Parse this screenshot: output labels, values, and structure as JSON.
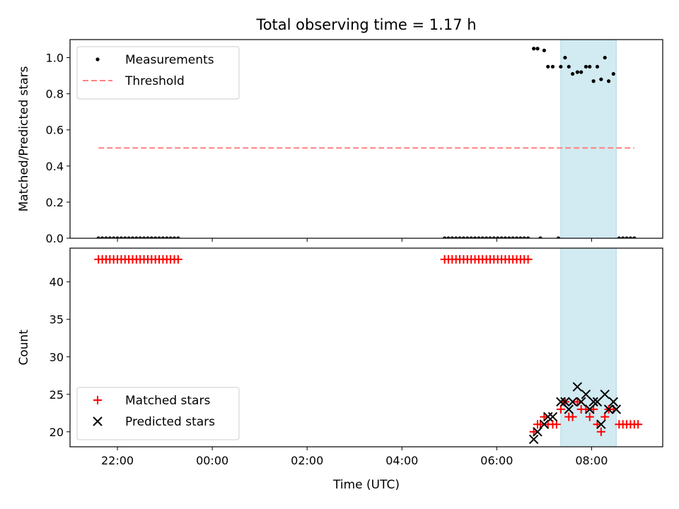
{
  "chart_data": {
    "title": "Total observing time = 1.17 h",
    "xlabel": "Time (UTC)",
    "x_unit": "hours relative to 00:00 UTC",
    "xlim": [
      -3.0,
      9.5
    ],
    "x_ticks": [
      {
        "value": -2,
        "label": "22:00"
      },
      {
        "value": 0,
        "label": "00:00"
      },
      {
        "value": 2,
        "label": "02:00"
      },
      {
        "value": 4,
        "label": "04:00"
      },
      {
        "value": 6,
        "label": "06:00"
      },
      {
        "value": 8,
        "label": "08:00"
      }
    ],
    "observing_window": {
      "x_start": 7.35,
      "x_end": 8.52,
      "color": "#add8e6"
    },
    "panels": [
      {
        "type": "scatter",
        "ylabel": "Matched/Predicted stars",
        "ylim": [
          0.0,
          1.1
        ],
        "y_ticks": [
          0.0,
          0.2,
          0.4,
          0.6,
          0.8,
          1.0
        ],
        "y_tick_labels": [
          "0.0",
          "0.2",
          "0.4",
          "0.6",
          "0.8",
          "1.0"
        ],
        "legend": {
          "placement": "upper left",
          "entries": [
            "Measurements",
            "Threshold"
          ]
        },
        "series": [
          {
            "name": "Measurements",
            "color": "#000000",
            "marker": "dot",
            "points": [
              [
                -2.4,
                0.0
              ],
              [
                -2.32,
                0.0
              ],
              [
                -2.24,
                0.0
              ],
              [
                -2.16,
                0.0
              ],
              [
                -2.08,
                0.0
              ],
              [
                -2.0,
                0.0
              ],
              [
                -1.92,
                0.0
              ],
              [
                -1.84,
                0.0
              ],
              [
                -1.76,
                0.0
              ],
              [
                -1.68,
                0.0
              ],
              [
                -1.6,
                0.0
              ],
              [
                -1.52,
                0.0
              ],
              [
                -1.44,
                0.0
              ],
              [
                -1.36,
                0.0
              ],
              [
                -1.28,
                0.0
              ],
              [
                -1.2,
                0.0
              ],
              [
                -1.12,
                0.0
              ],
              [
                -1.04,
                0.0
              ],
              [
                -0.96,
                0.0
              ],
              [
                -0.88,
                0.0
              ],
              [
                -0.8,
                0.0
              ],
              [
                -0.72,
                0.0
              ],
              [
                4.9,
                0.0
              ],
              [
                4.98,
                0.0
              ],
              [
                5.06,
                0.0
              ],
              [
                5.14,
                0.0
              ],
              [
                5.22,
                0.0
              ],
              [
                5.3,
                0.0
              ],
              [
                5.38,
                0.0
              ],
              [
                5.46,
                0.0
              ],
              [
                5.54,
                0.0
              ],
              [
                5.62,
                0.0
              ],
              [
                5.7,
                0.0
              ],
              [
                5.78,
                0.0
              ],
              [
                5.86,
                0.0
              ],
              [
                5.94,
                0.0
              ],
              [
                6.02,
                0.0
              ],
              [
                6.1,
                0.0
              ],
              [
                6.18,
                0.0
              ],
              [
                6.26,
                0.0
              ],
              [
                6.34,
                0.0
              ],
              [
                6.42,
                0.0
              ],
              [
                6.5,
                0.0
              ],
              [
                6.58,
                0.0
              ],
              [
                6.66,
                0.0
              ],
              [
                6.78,
                1.05
              ],
              [
                6.86,
                1.05
              ],
              [
                6.92,
                0.0
              ],
              [
                7.0,
                1.04
              ],
              [
                7.08,
                0.95
              ],
              [
                7.18,
                0.95
              ],
              [
                7.3,
                0.0
              ],
              [
                7.35,
                0.95
              ],
              [
                7.44,
                1.0
              ],
              [
                7.52,
                0.95
              ],
              [
                7.6,
                0.91
              ],
              [
                7.7,
                0.92
              ],
              [
                7.78,
                0.92
              ],
              [
                7.88,
                0.95
              ],
              [
                7.96,
                0.95
              ],
              [
                8.04,
                0.87
              ],
              [
                8.12,
                0.95
              ],
              [
                8.2,
                0.88
              ],
              [
                8.28,
                1.0
              ],
              [
                8.36,
                0.87
              ],
              [
                8.46,
                0.91
              ],
              [
                8.58,
                0.0
              ],
              [
                8.66,
                0.0
              ],
              [
                8.74,
                0.0
              ],
              [
                8.82,
                0.0
              ],
              [
                8.9,
                0.0
              ]
            ]
          },
          {
            "name": "Threshold",
            "color": "#ff8080",
            "style": "dashed",
            "x_range": [
              -2.4,
              8.9
            ],
            "y": 0.5
          }
        ]
      },
      {
        "type": "scatter",
        "ylabel": "Count",
        "ylim": [
          18.0,
          44.5
        ],
        "y_ticks": [
          20,
          25,
          30,
          35,
          40
        ],
        "y_tick_labels": [
          "20",
          "25",
          "30",
          "35",
          "40"
        ],
        "legend": {
          "placement": "lower left",
          "entries": [
            "Matched stars",
            "Predicted stars"
          ]
        },
        "series": [
          {
            "name": "Matched stars",
            "color": "#ff0000",
            "marker": "plus",
            "points": [
              [
                -2.4,
                43
              ],
              [
                -2.32,
                43
              ],
              [
                -2.24,
                43
              ],
              [
                -2.16,
                43
              ],
              [
                -2.08,
                43
              ],
              [
                -2.0,
                43
              ],
              [
                -1.92,
                43
              ],
              [
                -1.84,
                43
              ],
              [
                -1.76,
                43
              ],
              [
                -1.68,
                43
              ],
              [
                -1.6,
                43
              ],
              [
                -1.52,
                43
              ],
              [
                -1.44,
                43
              ],
              [
                -1.36,
                43
              ],
              [
                -1.28,
                43
              ],
              [
                -1.2,
                43
              ],
              [
                -1.12,
                43
              ],
              [
                -1.04,
                43
              ],
              [
                -0.96,
                43
              ],
              [
                -0.88,
                43
              ],
              [
                -0.8,
                43
              ],
              [
                -0.72,
                43
              ],
              [
                4.9,
                43
              ],
              [
                4.98,
                43
              ],
              [
                5.06,
                43
              ],
              [
                5.14,
                43
              ],
              [
                5.22,
                43
              ],
              [
                5.3,
                43
              ],
              [
                5.38,
                43
              ],
              [
                5.46,
                43
              ],
              [
                5.54,
                43
              ],
              [
                5.62,
                43
              ],
              [
                5.7,
                43
              ],
              [
                5.78,
                43
              ],
              [
                5.86,
                43
              ],
              [
                5.94,
                43
              ],
              [
                6.02,
                43
              ],
              [
                6.1,
                43
              ],
              [
                6.18,
                43
              ],
              [
                6.26,
                43
              ],
              [
                6.34,
                43
              ],
              [
                6.42,
                43
              ],
              [
                6.5,
                43
              ],
              [
                6.58,
                43
              ],
              [
                6.66,
                43
              ],
              [
                6.78,
                20
              ],
              [
                6.86,
                21
              ],
              [
                6.92,
                21
              ],
              [
                7.0,
                22
              ],
              [
                7.08,
                21
              ],
              [
                7.18,
                21
              ],
              [
                7.26,
                21
              ],
              [
                7.35,
                23
              ],
              [
                7.44,
                24
              ],
              [
                7.52,
                22
              ],
              [
                7.6,
                22
              ],
              [
                7.7,
                24
              ],
              [
                7.78,
                23
              ],
              [
                7.88,
                23
              ],
              [
                7.96,
                22
              ],
              [
                8.04,
                23
              ],
              [
                8.12,
                21
              ],
              [
                8.2,
                20
              ],
              [
                8.28,
                22
              ],
              [
                8.36,
                23
              ],
              [
                8.46,
                23
              ],
              [
                8.58,
                21
              ],
              [
                8.66,
                21
              ],
              [
                8.74,
                21
              ],
              [
                8.82,
                21
              ],
              [
                8.9,
                21
              ],
              [
                8.98,
                21
              ]
            ]
          },
          {
            "name": "Predicted stars",
            "color": "#000000",
            "marker": "x",
            "points": [
              [
                6.78,
                19
              ],
              [
                6.86,
                20
              ],
              [
                7.0,
                21
              ],
              [
                7.08,
                22
              ],
              [
                7.18,
                22
              ],
              [
                7.35,
                24
              ],
              [
                7.44,
                24
              ],
              [
                7.52,
                23
              ],
              [
                7.6,
                24
              ],
              [
                7.7,
                26
              ],
              [
                7.78,
                24
              ],
              [
                7.88,
                25
              ],
              [
                7.96,
                23
              ],
              [
                8.04,
                24
              ],
              [
                8.12,
                24
              ],
              [
                8.2,
                21
              ],
              [
                8.28,
                25
              ],
              [
                8.36,
                23
              ],
              [
                8.46,
                24
              ],
              [
                8.52,
                23
              ]
            ]
          }
        ]
      }
    ]
  },
  "colors": {
    "observing_window": "#add8e6",
    "threshold": "#ff8080",
    "matched": "#ff0000",
    "predicted": "#000000"
  }
}
